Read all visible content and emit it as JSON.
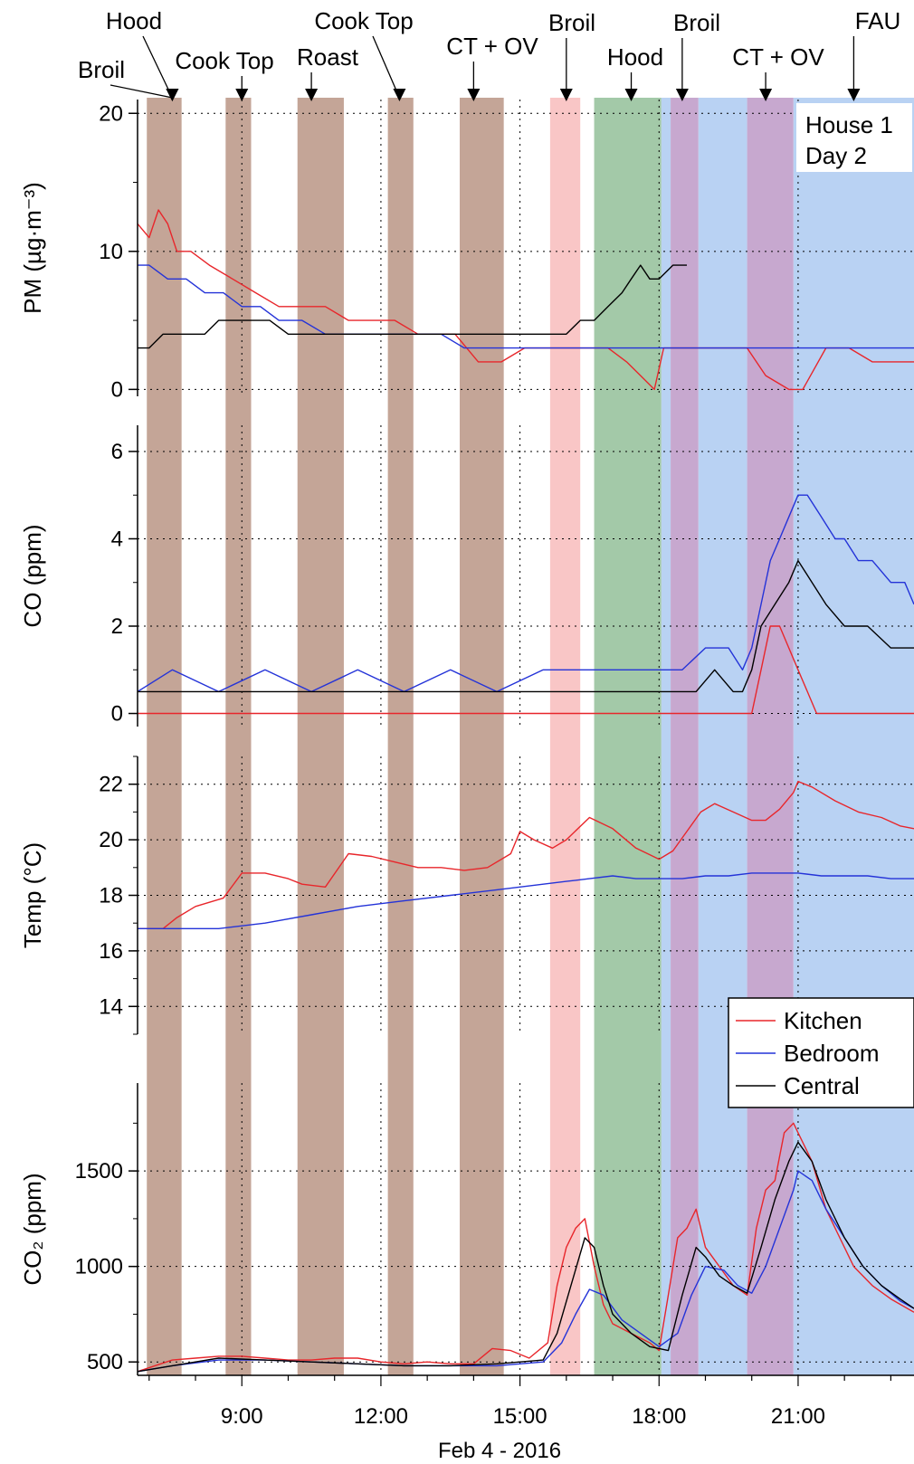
{
  "house_label": {
    "line1": "House 1",
    "line2": "Day 2"
  },
  "events": [
    {
      "label": "Broil",
      "time": 7.5
    },
    {
      "label": "Hood",
      "time": 7.5
    },
    {
      "label": "Cook Top",
      "time": 9.0
    },
    {
      "label": "Roast",
      "time": 10.5
    },
    {
      "label": "Cook Top",
      "time": 12.4
    },
    {
      "label": "CT + OV",
      "time": 14.0
    },
    {
      "label": "Broil",
      "time": 16.0
    },
    {
      "label": "Hood",
      "time": 17.4
    },
    {
      "label": "Broil",
      "time": 18.5
    },
    {
      "label": "CT + OV",
      "time": 20.3
    },
    {
      "label": "FAU",
      "time": 22.2
    }
  ],
  "periods": [
    {
      "start": 6.95,
      "end": 7.7,
      "color": "#c4a597"
    },
    {
      "start": 8.65,
      "end": 9.2,
      "color": "#c4a597"
    },
    {
      "start": 10.2,
      "end": 11.2,
      "color": "#c4a597"
    },
    {
      "start": 12.15,
      "end": 12.7,
      "color": "#c4a597"
    },
    {
      "start": 13.7,
      "end": 14.65,
      "color": "#c4a597"
    },
    {
      "start": 15.65,
      "end": 16.3,
      "color": "#f9c6c6"
    },
    {
      "start": 16.6,
      "end": 18.05,
      "color": "#a3c9a8"
    },
    {
      "start": 18.05,
      "end": 18.25,
      "color": "#b9d2f3"
    },
    {
      "start": 18.25,
      "end": 18.85,
      "color": "#c7a8cf"
    },
    {
      "start": 18.85,
      "end": 19.9,
      "color": "#b9d2f3"
    },
    {
      "start": 19.9,
      "end": 20.9,
      "color": "#c7a8cf"
    },
    {
      "start": 20.9,
      "end": 23.5,
      "color": "#b9d2f3"
    }
  ],
  "legend": {
    "entries": [
      {
        "name": "Kitchen",
        "color": "#e8262b"
      },
      {
        "name": "Bedroom",
        "color": "#2433d8"
      },
      {
        "name": "Central",
        "color": "#000000"
      }
    ]
  },
  "x_axis": {
    "title": "Feb 4 - 2016",
    "ticks": [
      {
        "label": "9:00",
        "value": 9
      },
      {
        "label": "12:00",
        "value": 12
      },
      {
        "label": "15:00",
        "value": 15
      },
      {
        "label": "18:00",
        "value": 18
      },
      {
        "label": "21:00",
        "value": 21
      }
    ],
    "range": [
      6.75,
      23.5
    ]
  },
  "chart_data": [
    {
      "type": "line",
      "ylabel": "PM (µg·m⁻³)",
      "ylim": [
        -0.5,
        21
      ],
      "yticks": [
        0,
        10,
        20
      ],
      "grid": true,
      "series": [
        {
          "name": "Kitchen",
          "x": [
            6.75,
            7.0,
            7.2,
            7.4,
            7.6,
            7.9,
            8.3,
            8.8,
            9.3,
            9.8,
            10.3,
            10.8,
            11.3,
            11.8,
            12.3,
            12.8,
            13.2,
            13.6,
            14.1,
            14.6,
            15.1,
            15.6,
            16.1,
            16.5,
            16.9,
            17.3,
            17.6,
            17.9,
            18.1,
            18.4,
            18.8,
            19.2,
            19.6,
            19.9,
            20.3,
            20.8,
            21.1,
            21.6,
            22.1,
            22.6,
            23.1,
            23.5
          ],
          "y": [
            12,
            11,
            13,
            12,
            10,
            10,
            9,
            8,
            7,
            6,
            6,
            6,
            5,
            5,
            5,
            4,
            4,
            4,
            2,
            2,
            3,
            3,
            3,
            3,
            3,
            2,
            1,
            0,
            3,
            3,
            3,
            3,
            3,
            3,
            1,
            0,
            0,
            3,
            3,
            2,
            2,
            2
          ]
        },
        {
          "name": "Bedroom",
          "x": [
            6.75,
            7.0,
            7.4,
            7.8,
            8.2,
            8.6,
            9.0,
            9.4,
            9.8,
            10.3,
            10.8,
            11.3,
            11.8,
            12.3,
            12.8,
            13.3,
            13.8,
            14.3,
            14.8,
            15.3,
            15.8,
            16.3,
            16.8,
            17.3,
            17.8,
            18.2,
            18.6,
            19.0,
            19.4,
            19.8,
            20.2,
            20.6,
            21.0,
            21.4,
            21.8,
            22.3,
            22.8,
            23.5
          ],
          "y": [
            9,
            9,
            8,
            8,
            7,
            7,
            6,
            6,
            5,
            5,
            4,
            4,
            4,
            4,
            4,
            4,
            3,
            3,
            3,
            3,
            3,
            3,
            3,
            3,
            3,
            3,
            3,
            3,
            3,
            3,
            3,
            3,
            3,
            3,
            3,
            3,
            3,
            3
          ]
        },
        {
          "name": "Central",
          "x": [
            6.75,
            7.0,
            7.3,
            7.6,
            7.9,
            8.2,
            8.5,
            8.8,
            9.2,
            9.6,
            10.0,
            10.5,
            11.0,
            11.5,
            12.0,
            12.5,
            13.0,
            13.5,
            14.0,
            14.5,
            15.0,
            15.5,
            16.0,
            16.3,
            16.6,
            16.9,
            17.2,
            17.4,
            17.6,
            17.8,
            18.0,
            18.3,
            18.6
          ],
          "y": [
            3,
            3,
            4,
            4,
            4,
            4,
            5,
            5,
            5,
            5,
            4,
            4,
            4,
            4,
            4,
            4,
            4,
            4,
            4,
            4,
            4,
            4,
            4,
            5,
            5,
            6,
            7,
            8,
            9,
            8,
            8,
            9,
            9
          ]
        }
      ]
    },
    {
      "type": "line",
      "ylabel": "CO (ppm)",
      "ylim": [
        -0.3,
        6.6
      ],
      "yticks": [
        0,
        2,
        4,
        6
      ],
      "grid": true,
      "series": [
        {
          "name": "Kitchen",
          "x": [
            6.75,
            19.8,
            20.0,
            20.2,
            20.4,
            20.6,
            20.8,
            21.0,
            21.2,
            21.4,
            21.6,
            22.0,
            22.5,
            23.0,
            23.5
          ],
          "y": [
            0,
            0,
            0,
            1,
            2,
            2,
            1.5,
            1,
            0.5,
            0,
            0,
            0,
            0,
            0,
            0
          ]
        },
        {
          "name": "Bedroom",
          "x": [
            6.75,
            7.5,
            8.5,
            9.5,
            10.5,
            11.5,
            12.5,
            13.5,
            14.5,
            15.5,
            16.5,
            17.5,
            18.5,
            19.0,
            19.5,
            19.8,
            20.0,
            20.2,
            20.4,
            20.6,
            20.8,
            21.0,
            21.2,
            21.5,
            21.8,
            22.0,
            22.3,
            22.6,
            23.0,
            23.3,
            23.5
          ],
          "y": [
            0.5,
            1,
            0.5,
            1,
            0.5,
            1,
            0.5,
            1,
            0.5,
            1,
            1,
            1,
            1,
            1.5,
            1.5,
            1,
            1.5,
            2.5,
            3.5,
            4,
            4.5,
            5,
            5,
            4.5,
            4,
            4,
            3.5,
            3.5,
            3,
            3,
            2.5
          ]
        },
        {
          "name": "Central",
          "x": [
            6.75,
            8.0,
            10.0,
            12.0,
            14.0,
            16.0,
            18.0,
            18.8,
            19.2,
            19.6,
            19.8,
            20.0,
            20.2,
            20.5,
            20.8,
            21.0,
            21.3,
            21.6,
            22.0,
            22.5,
            23.0,
            23.5
          ],
          "y": [
            0.5,
            0.5,
            0.5,
            0.5,
            0.5,
            0.5,
            0.5,
            0.5,
            1,
            0.5,
            0.5,
            1,
            2,
            2.5,
            3,
            3.5,
            3,
            2.5,
            2,
            2,
            1.5,
            1.5
          ]
        }
      ]
    },
    {
      "type": "line",
      "ylabel": "Temp (°C)",
      "ylim": [
        13,
        23
      ],
      "yticks": [
        14,
        16,
        18,
        20,
        22
      ],
      "grid": true,
      "series": [
        {
          "name": "Kitchen",
          "x": [
            6.75,
            7.3,
            7.6,
            8.0,
            8.6,
            9.0,
            9.5,
            10.0,
            10.3,
            10.8,
            11.3,
            11.8,
            12.3,
            12.8,
            13.3,
            13.8,
            14.3,
            14.8,
            15.0,
            15.3,
            15.7,
            16.0,
            16.5,
            17.0,
            17.5,
            18.0,
            18.3,
            18.6,
            18.9,
            19.2,
            19.6,
            20.0,
            20.3,
            20.6,
            20.9,
            21.0,
            21.3,
            21.8,
            22.3,
            22.8,
            23.2,
            23.5
          ],
          "y": [
            16.8,
            16.8,
            17.2,
            17.6,
            17.9,
            18.8,
            18.8,
            18.6,
            18.4,
            18.3,
            19.5,
            19.4,
            19.2,
            19.0,
            19.0,
            18.9,
            19.0,
            19.5,
            20.3,
            20.0,
            19.7,
            20.0,
            20.8,
            20.4,
            19.7,
            19.3,
            19.6,
            20.3,
            21.0,
            21.3,
            21.0,
            20.7,
            20.7,
            21.1,
            21.7,
            22.1,
            21.9,
            21.4,
            21.0,
            20.8,
            20.5,
            20.4
          ]
        },
        {
          "name": "Bedroom",
          "x": [
            6.75,
            7.5,
            8.5,
            9.5,
            10.5,
            11.5,
            12.5,
            13.5,
            14.5,
            15.5,
            16.0,
            16.5,
            17.0,
            17.5,
            18.0,
            18.5,
            19.0,
            19.5,
            20.0,
            20.5,
            21.0,
            21.5,
            22.0,
            22.5,
            23.0,
            23.5
          ],
          "y": [
            16.8,
            16.8,
            16.8,
            17.0,
            17.3,
            17.6,
            17.8,
            18.0,
            18.2,
            18.4,
            18.5,
            18.6,
            18.7,
            18.6,
            18.6,
            18.6,
            18.7,
            18.7,
            18.8,
            18.8,
            18.8,
            18.7,
            18.7,
            18.7,
            18.6,
            18.6
          ]
        }
      ]
    },
    {
      "type": "line",
      "ylabel": "CO₂ (ppm)",
      "ylim": [
        430,
        1960
      ],
      "yticks": [
        500,
        1000,
        1500
      ],
      "grid": true,
      "series": [
        {
          "name": "Kitchen",
          "x": [
            6.75,
            7.0,
            7.5,
            8.0,
            8.5,
            9.0,
            9.5,
            10.0,
            10.5,
            11.0,
            11.5,
            12.0,
            12.5,
            13.0,
            13.5,
            14.0,
            14.4,
            14.8,
            15.2,
            15.6,
            15.8,
            16.0,
            16.2,
            16.4,
            16.6,
            16.8,
            17.0,
            17.4,
            17.8,
            18.0,
            18.2,
            18.4,
            18.6,
            18.8,
            19.0,
            19.3,
            19.6,
            19.9,
            20.1,
            20.3,
            20.5,
            20.7,
            20.9,
            21.0,
            21.3,
            21.6,
            21.9,
            22.2,
            22.6,
            23.0,
            23.5
          ],
          "y": [
            450,
            470,
            510,
            520,
            530,
            530,
            520,
            510,
            510,
            520,
            520,
            500,
            490,
            500,
            490,
            490,
            570,
            560,
            520,
            600,
            900,
            1100,
            1200,
            1250,
            1000,
            800,
            700,
            650,
            600,
            560,
            850,
            1150,
            1200,
            1300,
            1100,
            1000,
            900,
            850,
            1200,
            1400,
            1450,
            1700,
            1750,
            1700,
            1550,
            1300,
            1150,
            1000,
            900,
            830,
            760
          ]
        },
        {
          "name": "Bedroom",
          "x": [
            6.75,
            7.5,
            8.5,
            9.5,
            10.5,
            11.5,
            12.5,
            13.5,
            14.5,
            15.5,
            15.9,
            16.2,
            16.5,
            16.8,
            17.2,
            17.6,
            18.0,
            18.4,
            18.7,
            19.0,
            19.4,
            19.7,
            20.0,
            20.3,
            20.6,
            20.9,
            21.0,
            21.3,
            21.6,
            22.0,
            22.4,
            22.8,
            23.2,
            23.5
          ],
          "y": [
            450,
            480,
            510,
            510,
            500,
            490,
            480,
            480,
            480,
            500,
            600,
            750,
            880,
            850,
            720,
            650,
            580,
            650,
            850,
            1000,
            980,
            900,
            860,
            1000,
            1200,
            1400,
            1500,
            1450,
            1300,
            1150,
            1000,
            900,
            820,
            780
          ]
        },
        {
          "name": "Central",
          "x": [
            6.75,
            7.5,
            8.5,
            9.5,
            10.5,
            11.5,
            12.5,
            13.5,
            14.5,
            15.5,
            15.8,
            16.1,
            16.4,
            16.6,
            16.8,
            17.0,
            17.4,
            17.8,
            18.2,
            18.5,
            18.8,
            19.0,
            19.3,
            19.6,
            19.9,
            20.2,
            20.5,
            20.8,
            21.0,
            21.3,
            21.6,
            22.0,
            22.4,
            22.8,
            23.2,
            23.5
          ],
          "y": [
            450,
            480,
            520,
            510,
            500,
            490,
            480,
            480,
            490,
            510,
            650,
            900,
            1150,
            1100,
            900,
            750,
            650,
            580,
            560,
            850,
            1100,
            1050,
            950,
            900,
            860,
            1100,
            1350,
            1550,
            1650,
            1550,
            1350,
            1150,
            1000,
            900,
            830,
            780
          ]
        }
      ]
    }
  ]
}
